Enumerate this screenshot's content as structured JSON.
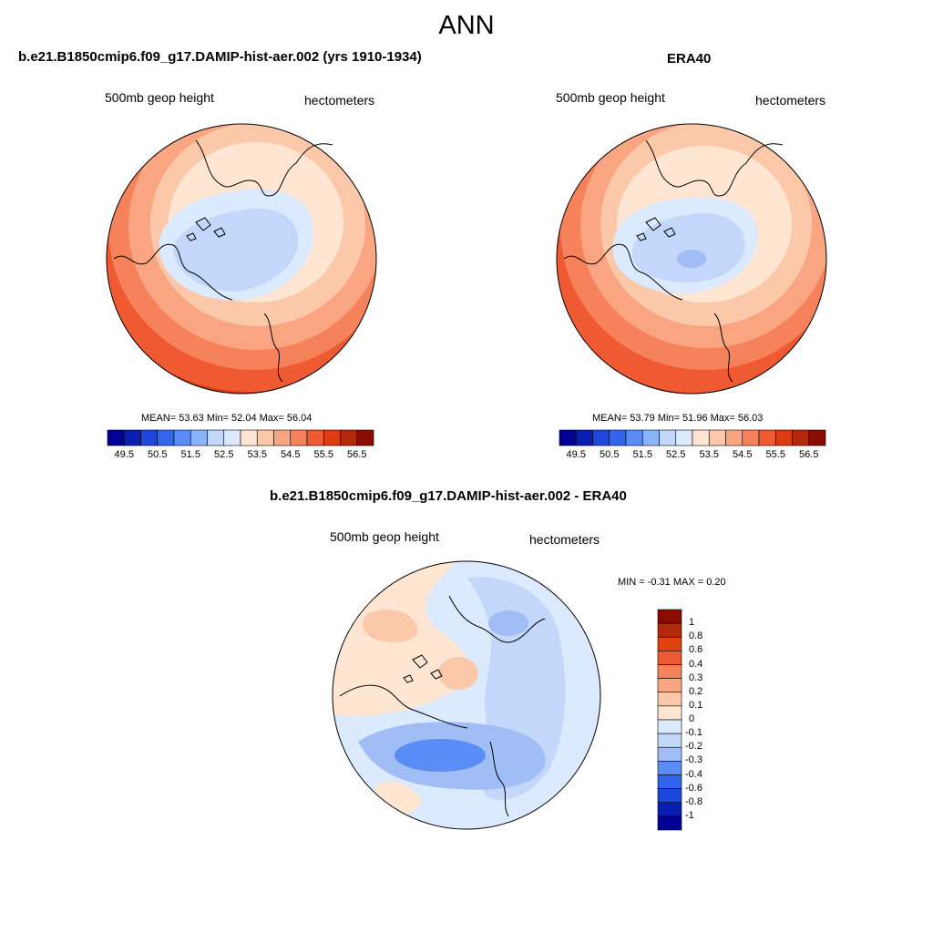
{
  "figure_title": "ANN",
  "panels": {
    "model": {
      "title": "b.e21.B1850cmip6.f09_g17.DAMIP-hist-aer.002 (yrs 1910-1934)",
      "left_label": "500mb geop height",
      "right_label": "hectometers",
      "stats": "MEAN=  53.63  Min=  52.04  Max=  56.04"
    },
    "obs": {
      "title": "ERA40",
      "left_label": "500mb geop height",
      "right_label": "hectometers",
      "stats": "MEAN=  53.79  Min=  51.96  Max=  56.03"
    },
    "diff": {
      "title": "b.e21.B1850cmip6.f09_g17.DAMIP-hist-aer.002 - ERA40",
      "left_label": "500mb geop height",
      "right_label": "hectometers",
      "stats": "MIN =  -0.31 MAX =   0.20"
    }
  },
  "colorbar_abs": {
    "labels": [
      "49.5",
      "50.5",
      "51.5",
      "52.5",
      "53.5",
      "54.5",
      "55.5",
      "56.5"
    ],
    "colors": [
      "#000096",
      "#0a1eb4",
      "#1e46dc",
      "#3264f0",
      "#5a8cf5",
      "#8cb4fa",
      "#c3d7fa",
      "#dceaff",
      "#ffe6d2",
      "#fcc8aa",
      "#faa582",
      "#f5825a",
      "#f05a32",
      "#dc3c14",
      "#b4280a",
      "#8c0a00"
    ]
  },
  "colorbar_diff": {
    "labels": [
      "1",
      "0.8",
      "0.6",
      "0.4",
      "0.3",
      "0.2",
      "0.1",
      "0",
      "-0.1",
      "-0.2",
      "-0.3",
      "-0.4",
      "-0.6",
      "-0.8",
      "-1"
    ],
    "colors": [
      "#8c0a00",
      "#b4280a",
      "#e1410f",
      "#f05a32",
      "#f5825a",
      "#faa582",
      "#fcc8aa",
      "#ffe6d2",
      "#dceaff",
      "#c3d7fa",
      "#a0bef5",
      "#5a8cf5",
      "#3264f0",
      "#1e46dc",
      "#0a1eb4",
      "#000096"
    ]
  }
}
